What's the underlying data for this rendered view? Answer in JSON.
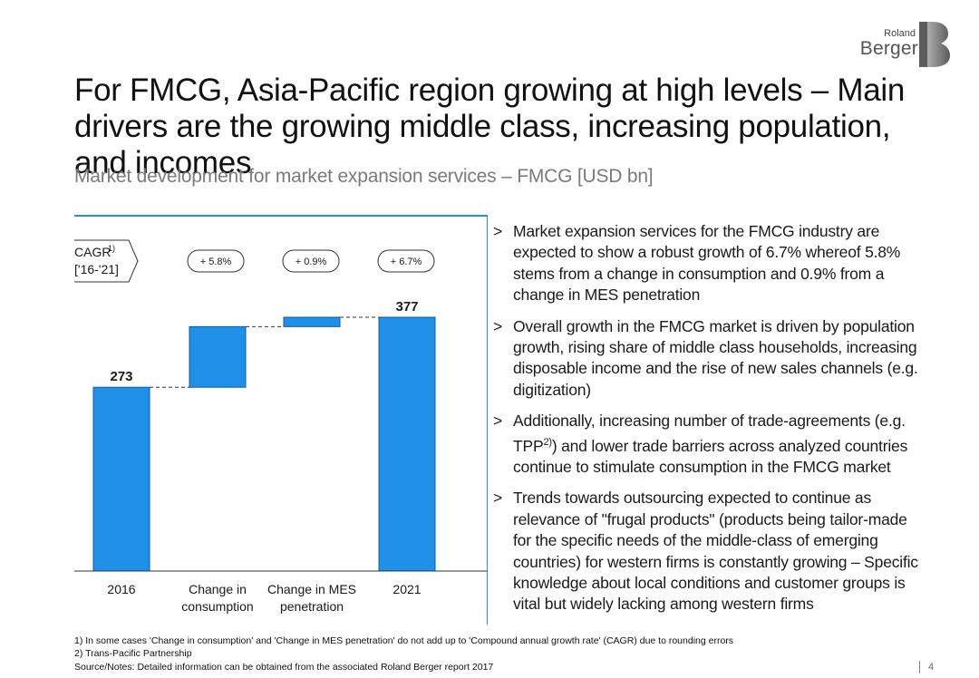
{
  "logo": {
    "line1": "Roland",
    "line2": "Berger"
  },
  "title": "For FMCG, Asia-Pacific region growing at high levels – Main drivers are the growing middle class, increasing population, and incomes",
  "subtitle": "Market development for market expansion services – FMCG [USD bn]",
  "chart_data": {
    "type": "bar",
    "subtype": "waterfall",
    "categories": [
      "2016",
      "Change in consumption",
      "Change in MES penetration",
      "2021"
    ],
    "category_lines": [
      [
        "2016"
      ],
      [
        "Change in",
        "consumption"
      ],
      [
        "Change in MES",
        "penetration"
      ],
      [
        "2021"
      ]
    ],
    "start_value": 273,
    "end_value": 377,
    "value_labels": [
      "273",
      "",
      "",
      "377"
    ],
    "color": "#1f8fe8",
    "cagr_label": "CAGR",
    "cagr_superscript": "1)",
    "cagr_period": "['16-'21]",
    "cagr_values": [
      "+ 5.8%",
      "+ 0.9%",
      "+ 6.7%"
    ]
  },
  "bullets": [
    {
      "marker": ">",
      "text": "Market expansion services for the FMCG industry are expected to show a robust growth of 6.7% whereof 5.8% stems from a change in consumption and 0.9% from a change in MES penetration"
    },
    {
      "marker": ">",
      "text": "Overall growth in the FMCG market is driven by population growth, rising share of middle class households, increasing disposable income and the rise of new sales channels (e.g. digitization)"
    },
    {
      "marker": ">",
      "text_before": "Additionally, increasing number of trade-agreements (e.g. TPP",
      "superscript": "2)",
      "text_after": ") and lower trade barriers across analyzed countries continue to stimulate consumption in the FMCG market"
    },
    {
      "marker": ">",
      "text": "Trends towards outsourcing expected to continue as relevance of \"frugal products\" (products being tailor-made for the specific needs of the middle-class of emerging countries) for western firms is constantly growing – Specific knowledge about local conditions and customer groups is vital but widely lacking among western firms"
    }
  ],
  "footnotes": [
    "1) In some cases 'Change in consumption' and 'Change in MES penetration' do not add up to 'Compound annual growth rate' (CAGR) due to rounding errors",
    "2) Trans-Pacific Partnership"
  ],
  "source": "Source/Notes: Detailed information can be obtained from the associated Roland Berger report 2017",
  "page_number": "4"
}
